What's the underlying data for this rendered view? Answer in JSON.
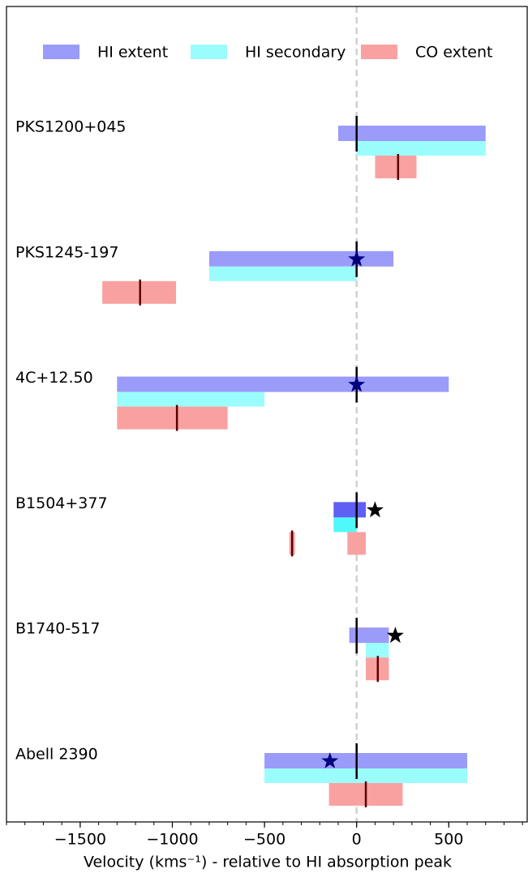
{
  "chart_data": {
    "type": "range",
    "xlabel": "Velocity (kms⁻¹) - relative to HI absorption peak",
    "xlim": [
      -1900,
      930
    ],
    "xticks": [
      {
        "value": -1500,
        "label": "−1500"
      },
      {
        "value": -1000,
        "label": "−1000"
      },
      {
        "value": -500,
        "label": "−500"
      },
      0,
      500
    ],
    "minor_tick_step": 100,
    "zero_line": true,
    "legend": [
      {
        "name": "HI extent",
        "color": "#9b9bf9"
      },
      {
        "name": "HI secondary",
        "color": "#9bfcfc"
      },
      {
        "name": "CO extent",
        "color": "#f9a1a1"
      }
    ],
    "sources": [
      {
        "name": "PKS1200+045",
        "hi_extent": [
          -100,
          700
        ],
        "hi_secondary": [
          0,
          700
        ],
        "co_extent": [
          [
            100,
            325
          ]
        ],
        "hi_peak": 0,
        "co_peak": 225,
        "star": null
      },
      {
        "name": "PKS1245-197",
        "hi_extent": [
          -800,
          200
        ],
        "hi_secondary": [
          -800,
          0
        ],
        "co_extent": [
          [
            -1380,
            -980
          ]
        ],
        "hi_peak": 0,
        "co_peak": -1175,
        "star": 0,
        "star_color": "#000080"
      },
      {
        "name": "4C+12.50",
        "hi_extent": [
          -1300,
          500
        ],
        "hi_secondary": [
          -1300,
          -500
        ],
        "co_extent": [
          [
            -1300,
            -700
          ]
        ],
        "hi_peak": 0,
        "co_peak": -975,
        "star": 0,
        "star_color": "#000080"
      },
      {
        "name": "B1504+377",
        "hi_extent": [
          -125,
          50
        ],
        "hi_secondary": [
          -125,
          0
        ],
        "co_extent": [
          [
            -365,
            -335
          ],
          [
            -50,
            50
          ]
        ],
        "hi_peak": 0,
        "co_peak": -350,
        "star": 100,
        "star_color": "#000000",
        "hi_extent_color": "#5f5ff4",
        "hi_secondary_color": "#4ff9f9"
      },
      {
        "name": "B1740-517",
        "hi_extent": [
          -40,
          175
        ],
        "hi_secondary": [
          50,
          175
        ],
        "co_extent": [
          [
            50,
            175
          ]
        ],
        "hi_peak": 0,
        "co_peak": 115,
        "star": 210,
        "star_color": "#000000"
      },
      {
        "name": "Abell 2390",
        "hi_extent": [
          -500,
          600
        ],
        "hi_secondary": [
          -500,
          600
        ],
        "co_extent": [
          [
            -150,
            250
          ]
        ],
        "hi_peak": 0,
        "co_peak": 50,
        "star": -145,
        "star_color": "#000080"
      }
    ]
  }
}
